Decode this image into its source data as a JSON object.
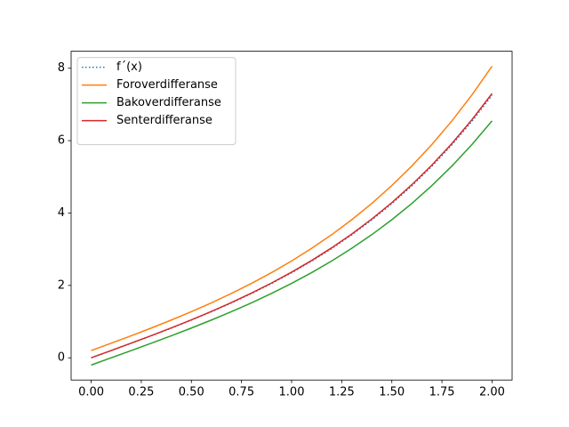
{
  "chart_data": {
    "type": "line",
    "x": [
      0,
      0.1,
      0.2,
      0.3,
      0.4,
      0.5,
      0.6,
      0.7,
      0.8,
      0.9,
      1.0,
      1.1,
      1.2,
      1.3,
      1.4,
      1.5,
      1.6,
      1.7,
      1.8,
      1.9,
      2.0
    ],
    "series": [
      {
        "name": "f´(x)",
        "color": "#1f77b4",
        "linestyle": "dotted",
        "values": [
          0,
          0.2003,
          0.4027,
          0.609,
          0.8215,
          1.0422,
          1.2733,
          1.5172,
          1.7762,
          2.053,
          2.3504,
          2.6713,
          3.0189,
          3.3968,
          3.8086,
          4.2586,
          4.7511,
          5.2913,
          5.8843,
          6.5363,
          7.2537
        ]
      },
      {
        "name": "Foroverdifferanse",
        "color": "#ff7f0e",
        "linestyle": "solid",
        "values": [
          0.2007,
          0.4034,
          0.6101,
          0.8229,
          1.0439,
          1.2754,
          1.5197,
          1.7792,
          2.0565,
          2.3543,
          2.6758,
          3.024,
          3.4024,
          3.815,
          4.2657,
          4.7591,
          5.3001,
          5.8942,
          6.5472,
          7.2658,
          8.0572
        ]
      },
      {
        "name": "Bakoverdifferanse",
        "color": "#2ca02c",
        "linestyle": "solid",
        "values": [
          -0.2007,
          0,
          0.2007,
          0.4034,
          0.6101,
          0.8229,
          1.0439,
          1.2754,
          1.5197,
          1.7792,
          2.0565,
          2.3543,
          2.6758,
          3.024,
          3.4024,
          3.815,
          4.2657,
          4.7591,
          5.3001,
          5.8942,
          6.5472
        ]
      },
      {
        "name": "Senterdifferanse",
        "color": "#d62728",
        "linestyle": "solid",
        "values": [
          0,
          0.2016,
          0.4054,
          0.6131,
          0.827,
          1.0492,
          1.2818,
          1.5273,
          1.7881,
          2.0667,
          2.3661,
          2.6891,
          3.0391,
          3.4195,
          3.834,
          4.2871,
          4.7828,
          5.3266,
          5.9236,
          6.58,
          7.3022
        ]
      }
    ],
    "xlim": [
      -0.1,
      2.1
    ],
    "ylim": [
      -0.614,
      8.47
    ],
    "xticks": [
      {
        "value": 0,
        "label": "0.00"
      },
      {
        "value": 0.25,
        "label": "0.25"
      },
      {
        "value": 0.5,
        "label": "0.50"
      },
      {
        "value": 0.75,
        "label": "0.75"
      },
      {
        "value": 1,
        "label": "1.00"
      },
      {
        "value": 1.25,
        "label": "1.25"
      },
      {
        "value": 1.5,
        "label": "1.50"
      },
      {
        "value": 1.75,
        "label": "1.75"
      },
      {
        "value": 2,
        "label": "2.00"
      }
    ],
    "yticks": [
      0,
      2,
      4,
      6,
      8
    ],
    "grid": false,
    "legend": "upper-left"
  }
}
